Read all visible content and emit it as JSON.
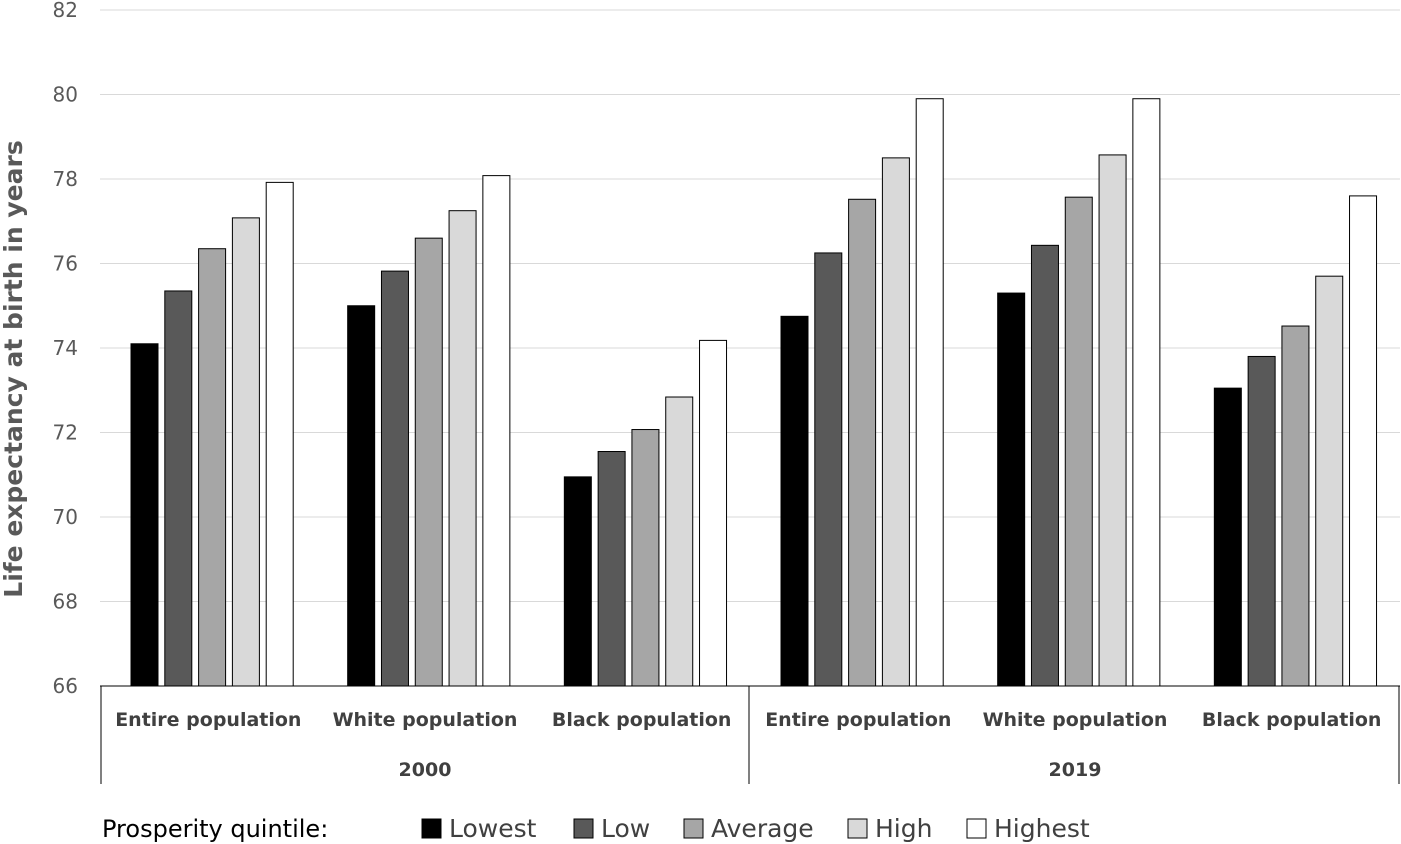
{
  "chart_data": {
    "type": "bar",
    "ylabel": "Life expectancy at birth in years",
    "ylim": [
      66,
      82
    ],
    "yticks": [
      "66",
      "68",
      "70",
      "72",
      "74",
      "76",
      "78",
      "80",
      "82"
    ],
    "groups": [
      {
        "label": "2000",
        "categories": [
          "Entire population",
          "White population",
          "Black population"
        ]
      },
      {
        "label": "2019",
        "categories": [
          "Entire population",
          "White population",
          "Black population"
        ]
      }
    ],
    "series": [
      {
        "name": "Lowest",
        "color": "#000000",
        "values": [
          74.1,
          75.0,
          70.95,
          74.75,
          75.3,
          73.05
        ]
      },
      {
        "name": "Low",
        "color": "#595959",
        "values": [
          75.35,
          75.82,
          71.55,
          76.25,
          76.43,
          73.8
        ]
      },
      {
        "name": "Average",
        "color": "#a6a6a6",
        "values": [
          76.35,
          76.6,
          72.07,
          77.52,
          77.57,
          74.52
        ]
      },
      {
        "name": "High",
        "color": "#d9d9d9",
        "values": [
          77.08,
          77.25,
          72.84,
          78.5,
          78.57,
          75.7
        ]
      },
      {
        "name": "Highest",
        "color": "#ffffff",
        "values": [
          77.92,
          78.08,
          74.18,
          79.9,
          79.9,
          77.6
        ]
      }
    ],
    "legend_title": "Prosperity quintile:",
    "legend_position": "bottom",
    "grid": true
  }
}
